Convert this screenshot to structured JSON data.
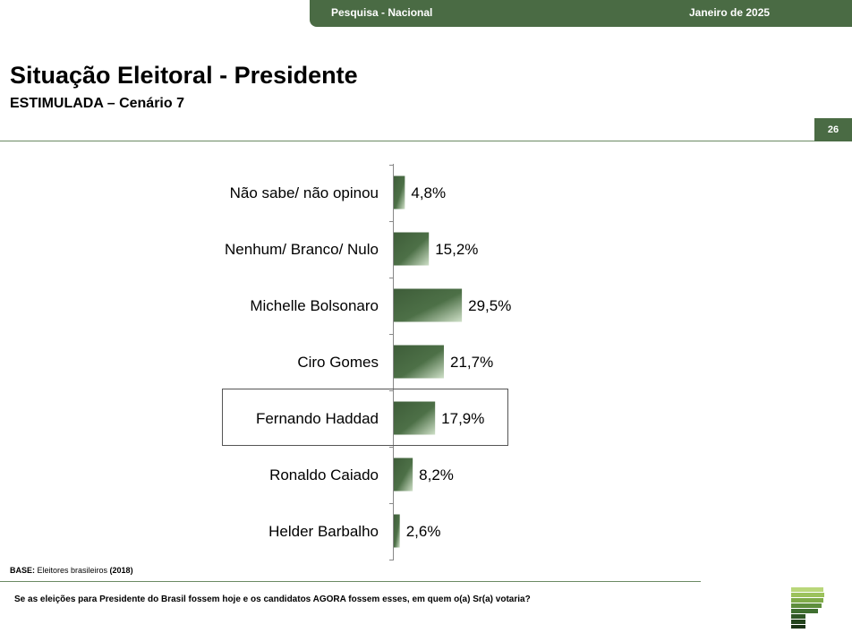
{
  "header": {
    "survey_label": "Pesquisa - Nacional",
    "date_label": "Janeiro de 2025",
    "title": "Situação Eleitoral - Presidente",
    "subtitle": "ESTIMULADA – Cenário 7",
    "page_number": "26"
  },
  "chart_data": {
    "type": "bar",
    "orientation": "horizontal",
    "categories": [
      "Não sabe/ não opinou",
      "Nenhum/ Branco/ Nulo",
      "Michelle Bolsonaro",
      "Ciro Gomes",
      "Fernando Haddad",
      "Ronaldo Caiado",
      "Helder Barbalho"
    ],
    "values": [
      4.8,
      15.2,
      29.5,
      21.7,
      17.9,
      8.2,
      2.6
    ],
    "value_labels": [
      "4,8%",
      "15,2%",
      "29,5%",
      "21,7%",
      "17,9%",
      "8,2%",
      "2,6%"
    ],
    "highlighted_category": "Fernando Haddad",
    "bar_color": "#4a6b44"
  },
  "footer": {
    "base_label": "BASE:",
    "base_text": " Eleitores brasileiros ",
    "base_year": "(2018)",
    "question": "Se as eleições para Presidente do Brasil fossem hoje e os candidatos AGORA fossem esses, em quem o(a) Sr(a) votaria?"
  },
  "colors": {
    "brand_green": "#4a6b44",
    "line_green": "#6b8a63"
  }
}
